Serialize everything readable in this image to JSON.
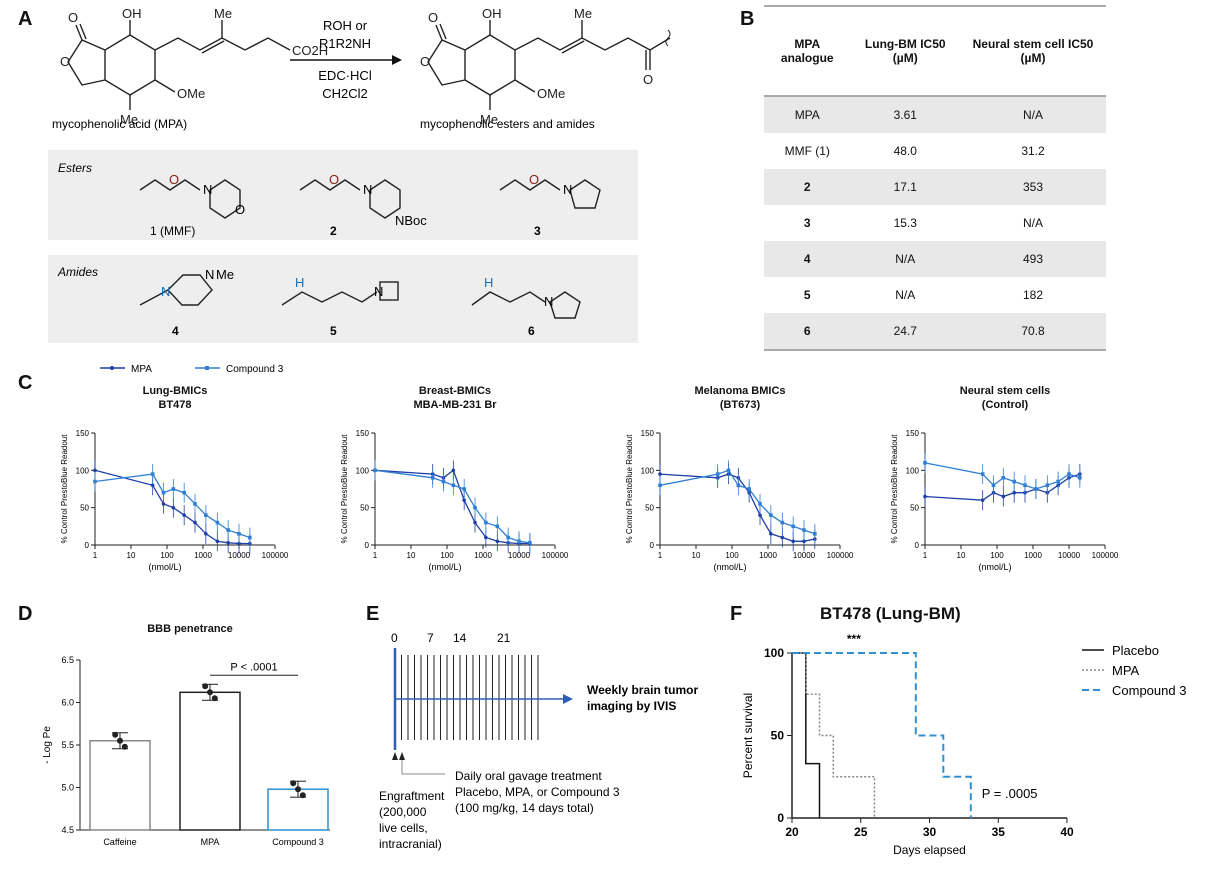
{
  "panels": {
    "A": "A",
    "B": "B",
    "C": "C",
    "D": "D",
    "E": "E",
    "F": "F"
  },
  "panelA": {
    "reagent_line1": "ROH or",
    "reagent_line2": "R1R2NH",
    "conditions1": "EDC·HCl",
    "conditions2": "CH2Cl2",
    "start_label": "mycophenolic acid (MPA)",
    "product_label": "mycophenolic esters and amides",
    "groups": {
      "Me": "Me",
      "OH": "OH",
      "OMe": "OMe",
      "CO2H": "CO2H",
      "O": "O",
      "N": "N",
      "NH": "H",
      "NBoc": "NBoc",
      "NMe": "Me"
    },
    "esters_title": "Esters",
    "amides_title": "Amides",
    "ester_labels": [
      "1 (MMF)",
      "2",
      "3"
    ],
    "amide_labels": [
      "4",
      "5",
      "6"
    ]
  },
  "panelB": {
    "headers": [
      "MPA analogue",
      "Lung-BM IC50 (µM)",
      "Neural stem cell IC50 (µM)"
    ],
    "rows": [
      [
        "MPA",
        "3.61",
        "N/A"
      ],
      [
        "MMF (1)",
        "48.0",
        "31.2"
      ],
      [
        "2",
        "17.1",
        "353"
      ],
      [
        "3",
        "15.3",
        "N/A"
      ],
      [
        "4",
        "N/A",
        "493"
      ],
      [
        "5",
        "N/A",
        "182"
      ],
      [
        "6",
        "24.7",
        "70.8"
      ]
    ]
  },
  "panelC": {
    "legend": [
      "MPA",
      "Compound 3"
    ],
    "colors": {
      "mpa": "#1f3fa8",
      "cmpd3": "#2f7fd4"
    },
    "ylabel": "% Control PrestoBlue Readout",
    "xlabel": "(nmol/L)",
    "yticks": [
      "0",
      "50",
      "100",
      "150"
    ],
    "xticks": [
      "1",
      "10",
      "100",
      "1000",
      "10000",
      "100000"
    ],
    "charts": [
      {
        "title1": "Lung-BMICs",
        "title2": "BT478"
      },
      {
        "title1": "Breast-BMICs",
        "title2": "MBA-MB-231 Br"
      },
      {
        "title1": "Melanoma BMICs",
        "title2": "(BT673)"
      },
      {
        "title1": "Neural stem cells",
        "title2": "(Control)"
      }
    ]
  },
  "panelD": {
    "title": "BBB penetrance",
    "ylabel": "- Log Pe",
    "yticks": [
      "4.5",
      "5.0",
      "5.5",
      "6.0",
      "6.5"
    ],
    "categories": [
      "Caffeine",
      "MPA",
      "Compound 3"
    ],
    "pvalue": "P < .0001"
  },
  "panelE": {
    "days": [
      "0",
      "7",
      "14",
      "21"
    ],
    "imaging_line1": "Weekly brain tumor",
    "imaging_line2": "imaging by IVIS",
    "engraft_lines": [
      "Engraftment",
      "(200,000",
      "live cells,",
      "intracranial)"
    ],
    "treat_lines": [
      "Daily oral gavage treatment",
      "Placebo, MPA, or Compound 3",
      "(100 mg/kg, 14 days total)"
    ]
  },
  "panelF": {
    "title": "BT478 (Lung-BM)",
    "ylabel": "Percent survival",
    "xlabel": "Days elapsed",
    "yticks": [
      "0",
      "50",
      "100"
    ],
    "xticks": [
      "20",
      "25",
      "30",
      "35",
      "40"
    ],
    "legend": [
      "Placebo",
      "MPA",
      "Compound 3"
    ],
    "sig": "***",
    "pvalue": "P = .0005"
  },
  "chart_data": [
    {
      "type": "line",
      "title": "Lung-BMICs BT478",
      "xlabel": "(nmol/L)",
      "ylabel": "% Control PrestoBlue Readout",
      "xscale": "log",
      "xlim": [
        1,
        100000
      ],
      "ylim": [
        0,
        150
      ],
      "series": [
        {
          "name": "MPA",
          "x": [
            1,
            40,
            80,
            150,
            300,
            600,
            1200,
            2500,
            5000,
            10000,
            20000
          ],
          "y": [
            100,
            80,
            55,
            50,
            40,
            30,
            15,
            5,
            3,
            2,
            2
          ]
        },
        {
          "name": "Compound 3",
          "x": [
            1,
            40,
            80,
            150,
            300,
            600,
            1200,
            2500,
            5000,
            10000,
            20000
          ],
          "y": [
            85,
            95,
            70,
            75,
            70,
            55,
            40,
            30,
            20,
            15,
            10
          ]
        }
      ]
    },
    {
      "type": "line",
      "title": "Breast-BMICs MBA-MB-231 Br",
      "xlabel": "(nmol/L)",
      "ylabel": "% Control PrestoBlue Readout",
      "xscale": "log",
      "xlim": [
        1,
        100000
      ],
      "ylim": [
        0,
        150
      ],
      "series": [
        {
          "name": "MPA",
          "x": [
            1,
            40,
            80,
            150,
            300,
            600,
            1200,
            2500,
            5000,
            10000,
            20000
          ],
          "y": [
            100,
            95,
            90,
            100,
            60,
            30,
            10,
            5,
            3,
            2,
            2
          ]
        },
        {
          "name": "Compound 3",
          "x": [
            1,
            40,
            80,
            150,
            300,
            600,
            1200,
            2500,
            5000,
            10000,
            20000
          ],
          "y": [
            100,
            90,
            85,
            80,
            75,
            50,
            30,
            25,
            10,
            5,
            3
          ]
        }
      ]
    },
    {
      "type": "line",
      "title": "Melanoma BMICs (BT673)",
      "xlabel": "(nmol/L)",
      "ylabel": "% Control PrestoBlue Readout",
      "xscale": "log",
      "xlim": [
        1,
        100000
      ],
      "ylim": [
        0,
        150
      ],
      "series": [
        {
          "name": "MPA",
          "x": [
            1,
            40,
            80,
            150,
            300,
            600,
            1200,
            2500,
            5000,
            10000,
            20000
          ],
          "y": [
            95,
            90,
            95,
            90,
            70,
            40,
            15,
            10,
            5,
            5,
            8
          ]
        },
        {
          "name": "Compound 3",
          "x": [
            1,
            40,
            80,
            150,
            300,
            600,
            1200,
            2500,
            5000,
            10000,
            20000
          ],
          "y": [
            80,
            95,
            100,
            80,
            75,
            55,
            40,
            30,
            25,
            20,
            15
          ]
        }
      ]
    },
    {
      "type": "line",
      "title": "Neural stem cells (Control)",
      "xlabel": "(nmol/L)",
      "ylabel": "% Control PrestoBlue Readout",
      "xscale": "log",
      "xlim": [
        1,
        100000
      ],
      "ylim": [
        0,
        150
      ],
      "series": [
        {
          "name": "MPA",
          "x": [
            1,
            40,
            80,
            150,
            300,
            600,
            1200,
            2500,
            5000,
            10000,
            20000
          ],
          "y": [
            65,
            60,
            70,
            65,
            70,
            70,
            75,
            70,
            80,
            90,
            95
          ]
        },
        {
          "name": "Compound 3",
          "x": [
            1,
            40,
            80,
            150,
            300,
            600,
            1200,
            2500,
            5000,
            10000,
            20000
          ],
          "y": [
            110,
            95,
            80,
            90,
            85,
            80,
            75,
            80,
            85,
            95,
            90
          ]
        }
      ]
    },
    {
      "type": "bar",
      "title": "BBB penetrance",
      "ylabel": "- Log Pe",
      "ylim": [
        4.5,
        6.5
      ],
      "categories": [
        "Caffeine",
        "MPA",
        "Compound 3"
      ],
      "values": [
        5.55,
        6.12,
        4.98
      ]
    },
    {
      "type": "line",
      "title": "BT478 (Lung-BM)",
      "xlabel": "Days elapsed",
      "ylabel": "Percent survival",
      "xlim": [
        20,
        40
      ],
      "ylim": [
        0,
        100
      ],
      "series": [
        {
          "name": "Placebo",
          "x": [
            20,
            21,
            21,
            22,
            22
          ],
          "y": [
            100,
            100,
            33,
            33,
            0
          ]
        },
        {
          "name": "MPA",
          "x": [
            20,
            21,
            21,
            22,
            22,
            23,
            23,
            26,
            26
          ],
          "y": [
            100,
            100,
            75,
            75,
            50,
            50,
            25,
            25,
            0
          ]
        },
        {
          "name": "Compound 3",
          "x": [
            20,
            29,
            29,
            31,
            31,
            33,
            33
          ],
          "y": [
            100,
            100,
            50,
            50,
            25,
            25,
            0
          ]
        }
      ]
    }
  ]
}
